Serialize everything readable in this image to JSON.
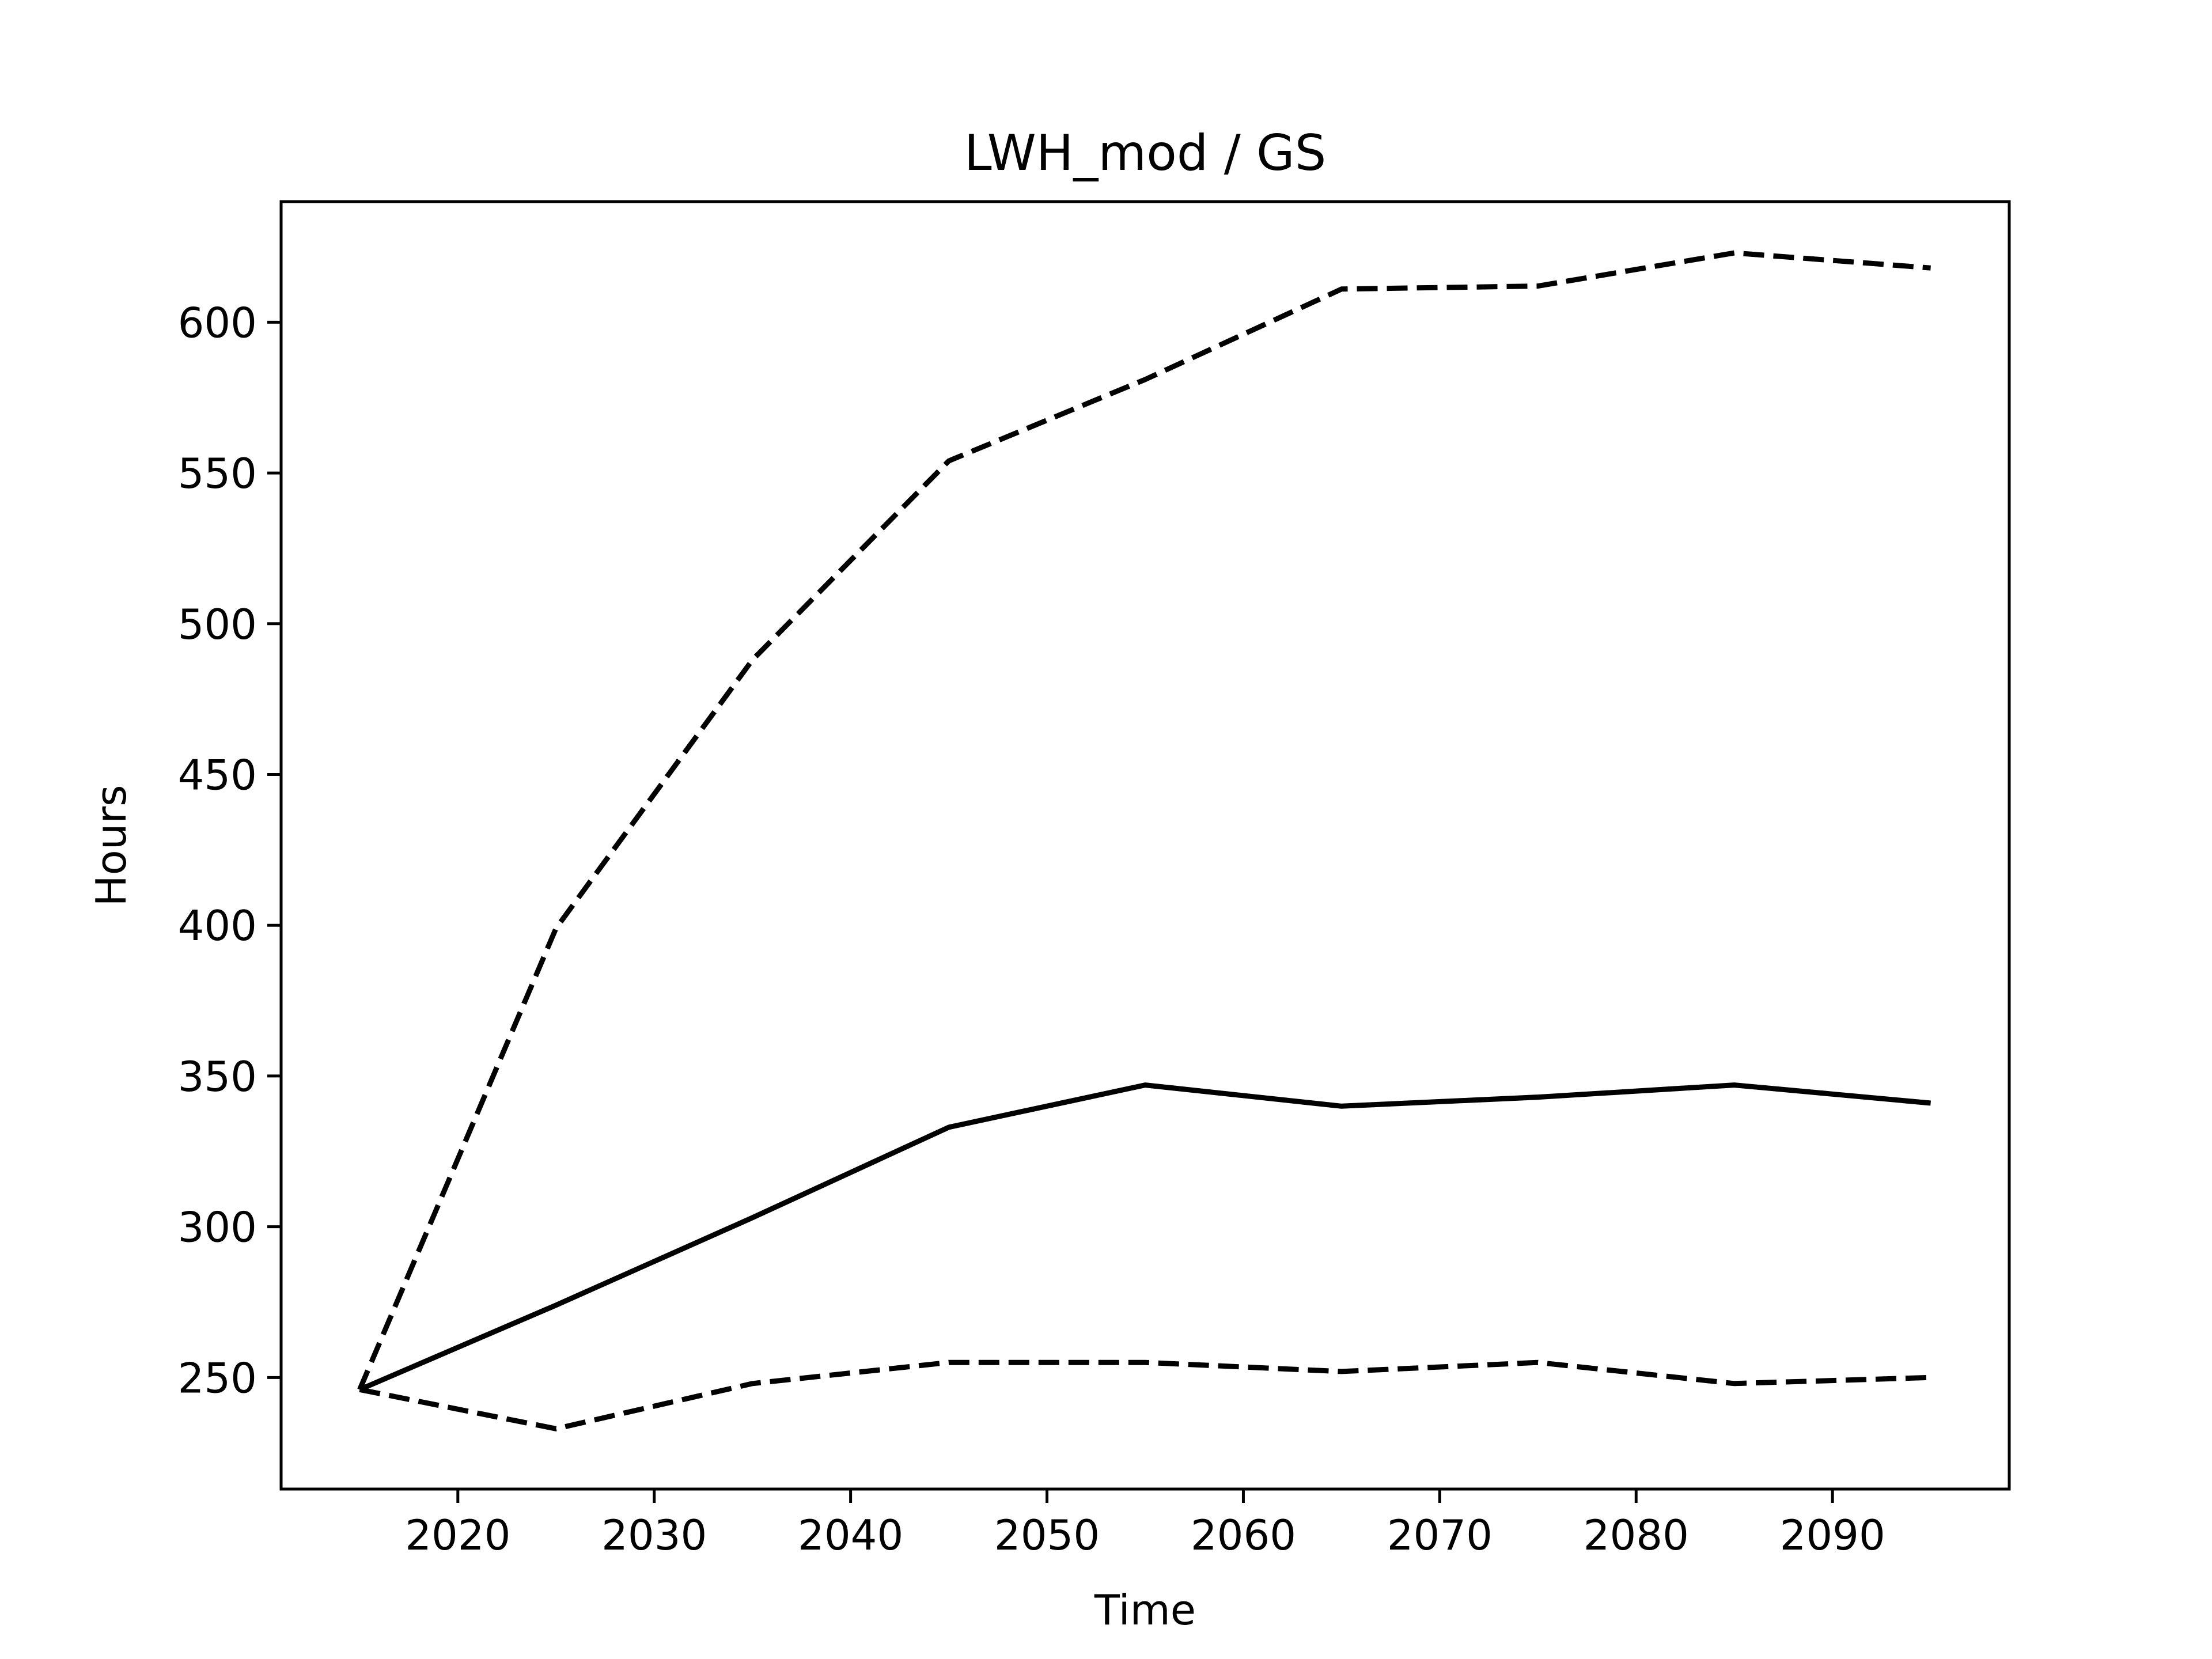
{
  "chart_data": {
    "type": "line",
    "title": "LWH_mod / GS",
    "xlabel": "Time",
    "ylabel": "Hours",
    "xlim": [
      2011,
      2099
    ],
    "ylim": [
      213,
      640
    ],
    "xticks": [
      2020,
      2030,
      2040,
      2050,
      2060,
      2070,
      2080,
      2090
    ],
    "yticks": [
      250,
      300,
      350,
      400,
      450,
      500,
      550,
      600
    ],
    "grid": false,
    "legend": "none",
    "x": [
      2015,
      2025,
      2035,
      2045,
      2055,
      2065,
      2075,
      2085,
      2095
    ],
    "series": [
      {
        "style": "solid",
        "color": "#000000",
        "values": [
          246,
          274,
          303,
          333,
          347,
          340,
          343,
          347,
          341
        ]
      },
      {
        "style": "dashed",
        "color": "#000000",
        "values": [
          246,
          399,
          488,
          554,
          581,
          611,
          612,
          623,
          618
        ]
      },
      {
        "style": "dashed",
        "color": "#000000",
        "values": [
          246,
          233,
          248,
          255,
          255,
          252,
          255,
          248,
          250
        ]
      }
    ]
  }
}
